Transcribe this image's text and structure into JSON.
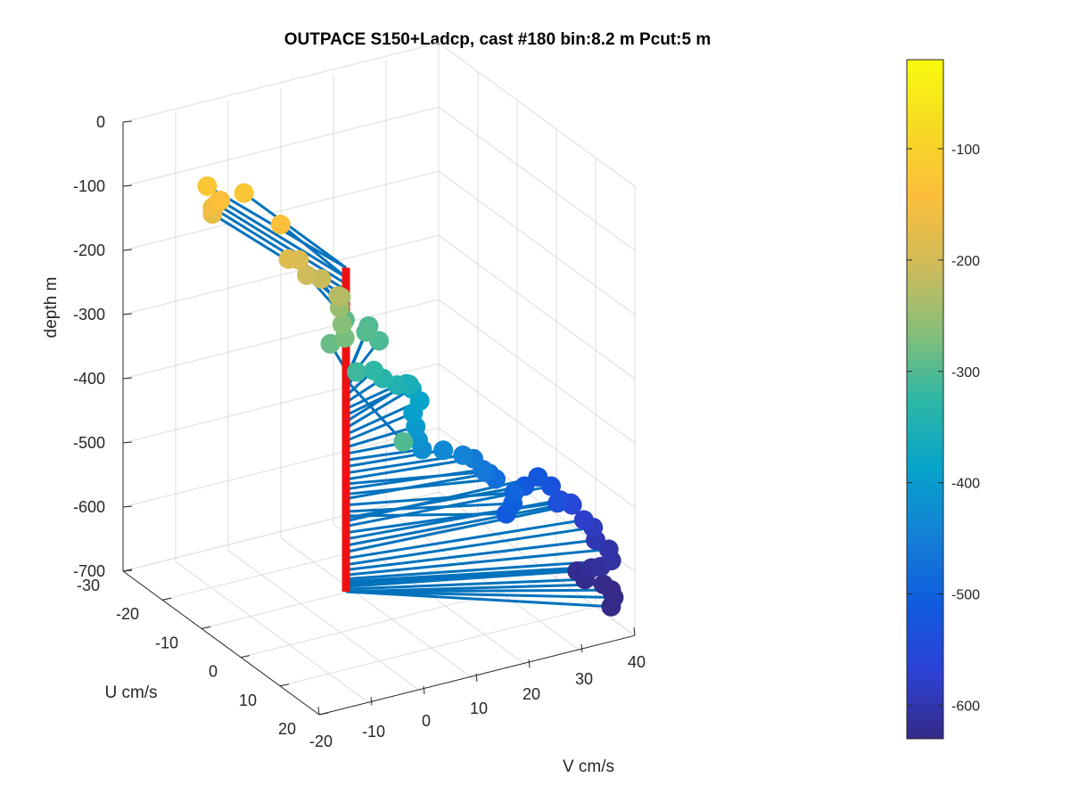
{
  "chart_data": {
    "type": "scatter",
    "title": "OUTPACE S150+Ladcp, cast #180 bin:8.2 m  Pcut:5 m",
    "zlabel": "depth m",
    "xlabel": "V cm/s",
    "ylabel": "U cm/s",
    "z_ticks": [
      "0",
      "-100",
      "-200",
      "-300",
      "-400",
      "-500",
      "-600",
      "-700"
    ],
    "v_ticks": [
      "-20",
      "-10",
      "0",
      "10",
      "20",
      "30",
      "40"
    ],
    "u_ticks": [
      "-30",
      "-20",
      "-10",
      "0",
      "10",
      "20"
    ],
    "colorbar_ticks": [
      "-100",
      "-200",
      "-300",
      "-400",
      "-500",
      "-600"
    ],
    "zlim": [
      -700,
      0
    ],
    "vlim": [
      -20,
      40
    ],
    "ulim": [
      -30,
      20
    ],
    "colorbar_limits": [
      -630,
      -20
    ],
    "colormap": "parula",
    "grid": true,
    "reference_line_color": "#ee1111",
    "vector_color": "#0072bd",
    "points": [
      {
        "v": -4,
        "u": -30,
        "depth": -125
      },
      {
        "v": 0,
        "u": -26,
        "depth": -125
      },
      {
        "v": 1,
        "u": -18,
        "depth": -140
      },
      {
        "v": -3,
        "u": -28,
        "depth": -140
      },
      {
        "v": -3,
        "u": -29,
        "depth": -150
      },
      {
        "v": -3,
        "u": -30,
        "depth": -160
      },
      {
        "v": -3,
        "u": -30,
        "depth": -170
      },
      {
        "v": 1,
        "u": -16,
        "depth": -185
      },
      {
        "v": 3,
        "u": -16,
        "depth": -190
      },
      {
        "v": 3,
        "u": -14,
        "depth": -205
      },
      {
        "v": 5,
        "u": -13,
        "depth": -210
      },
      {
        "v": 6,
        "u": -10,
        "depth": -225
      },
      {
        "v": 8,
        "u": -12,
        "depth": -240
      },
      {
        "v": 7,
        "u": -11,
        "depth": -250
      },
      {
        "v": 6,
        "u": -9,
        "depth": -265
      },
      {
        "v": 5,
        "u": -7,
        "depth": -275
      },
      {
        "v": 3,
        "u": -8,
        "depth": -285
      },
      {
        "v": 11,
        "u": -15,
        "depth": -295
      },
      {
        "v": 12,
        "u": -11,
        "depth": -298
      },
      {
        "v": 14,
        "u": -13,
        "depth": -302
      },
      {
        "v": 13,
        "u": -9,
        "depth": -305
      },
      {
        "v": 5,
        "u": -4,
        "depth": -315
      },
      {
        "v": -4,
        "u": 20,
        "depth": -300
      },
      {
        "v": 9,
        "u": -5,
        "depth": -325
      },
      {
        "v": 10,
        "u": -4,
        "depth": -335
      },
      {
        "v": 12,
        "u": -3,
        "depth": -345
      },
      {
        "v": 15,
        "u": -4,
        "depth": -355
      },
      {
        "v": 16,
        "u": -6,
        "depth": -365
      },
      {
        "v": 17,
        "u": -6,
        "depth": -375
      },
      {
        "v": 17,
        "u": -4,
        "depth": -385
      },
      {
        "v": 15,
        "u": -3,
        "depth": -395
      },
      {
        "v": 14,
        "u": -1,
        "depth": -405
      },
      {
        "v": 13,
        "u": 1,
        "depth": -415
      },
      {
        "v": 13,
        "u": 2,
        "depth": -425
      },
      {
        "v": 17,
        "u": 2,
        "depth": -435
      },
      {
        "v": 20,
        "u": 3,
        "depth": -445
      },
      {
        "v": 22,
        "u": 3,
        "depth": -455
      },
      {
        "v": 22,
        "u": 6,
        "depth": -462
      },
      {
        "v": 23,
        "u": 4,
        "depth": -470
      },
      {
        "v": 24,
        "u": 6,
        "depth": -478
      },
      {
        "v": 25,
        "u": 3,
        "depth": -485
      },
      {
        "v": 26,
        "u": 8,
        "depth": -495
      },
      {
        "v": 25,
        "u": 9,
        "depth": -505
      },
      {
        "v": 23,
        "u": 10,
        "depth": -512
      },
      {
        "v": 31,
        "u": 4,
        "depth": -515
      },
      {
        "v": 35,
        "u": 2,
        "depth": -520
      },
      {
        "v": 36,
        "u": 4,
        "depth": -528
      },
      {
        "v": 35,
        "u": 7,
        "depth": -538
      },
      {
        "v": 37,
        "u": 5,
        "depth": -548
      },
      {
        "v": 39,
        "u": 5,
        "depth": -558
      },
      {
        "v": 40,
        "u": 4,
        "depth": -568
      },
      {
        "v": 40,
        "u": 7,
        "depth": -578
      },
      {
        "v": 41,
        "u": 8,
        "depth": -588
      },
      {
        "v": 40,
        "u": 10,
        "depth": -596
      },
      {
        "v": 41,
        "u": 12,
        "depth": -604
      },
      {
        "v": 40,
        "u": 14,
        "depth": -610
      },
      {
        "v": 38,
        "u": 14,
        "depth": -614
      },
      {
        "v": 37,
        "u": 13,
        "depth": -618
      },
      {
        "v": 35,
        "u": 12,
        "depth": -622
      },
      {
        "v": 35,
        "u": 14,
        "depth": -626
      },
      {
        "v": 37,
        "u": 16,
        "depth": -630
      },
      {
        "v": 37,
        "u": 18,
        "depth": -630
      },
      {
        "v": 36,
        "u": 20,
        "depth": -630
      },
      {
        "v": 34,
        "u": 22,
        "depth": -630
      }
    ]
  }
}
